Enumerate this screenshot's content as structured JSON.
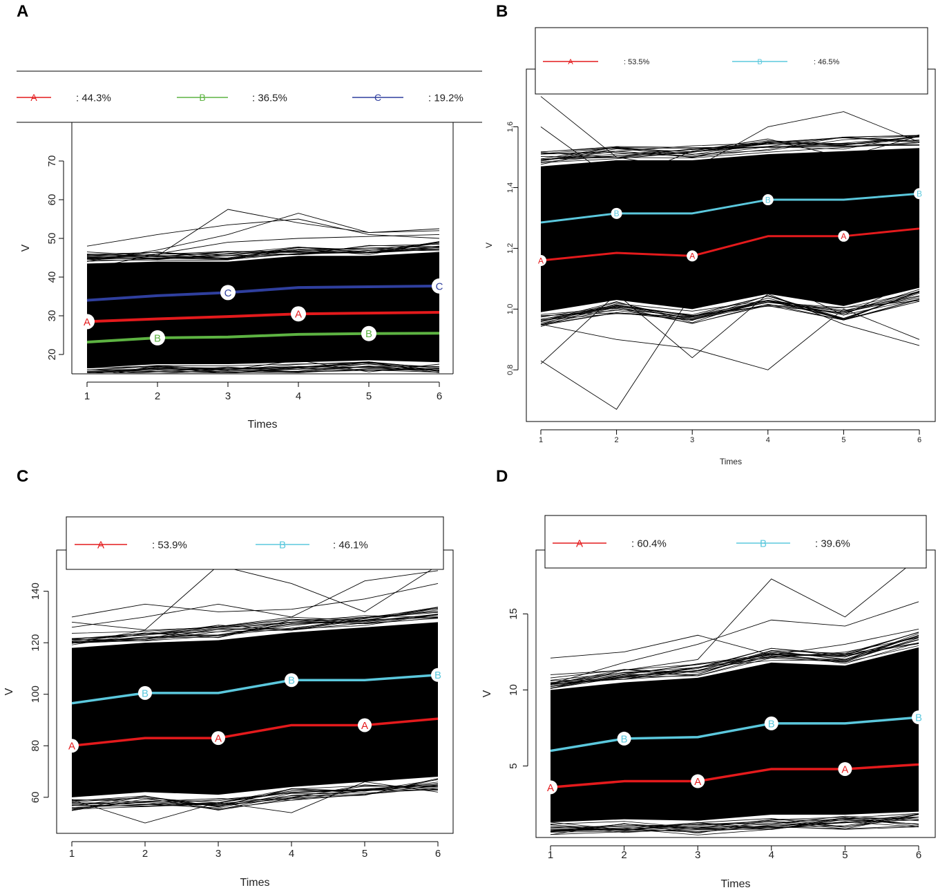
{
  "figure": {
    "panels": [
      "A",
      "B",
      "C",
      "D"
    ]
  },
  "chart_data": [
    {
      "panel": "A",
      "type": "line",
      "xlabel": "Times",
      "ylabel": "V",
      "x": [
        1,
        2,
        3,
        4,
        5,
        6
      ],
      "xticks": [
        1,
        2,
        3,
        4,
        5,
        6
      ],
      "yticks": [
        20,
        30,
        40,
        50,
        60,
        70
      ],
      "ylim": [
        15,
        80
      ],
      "band": {
        "lower": [
          16.5,
          17.5,
          17.5,
          18.0,
          18.5,
          18.0
        ],
        "upper": [
          43.5,
          44.0,
          44.0,
          45.5,
          45.5,
          46.5
        ]
      },
      "outliers": [
        [
          48.0,
          51.0,
          53.5,
          55.0,
          51.0,
          50.0
        ],
        [
          46.5,
          45.5,
          57.5,
          54.0,
          51.5,
          52.0
        ],
        [
          44.0,
          47.0,
          51.0,
          56.5,
          51.5,
          52.5
        ],
        [
          42.0,
          46.0,
          49.0,
          50.0,
          50.5,
          51.0
        ],
        [
          16.5,
          17.0,
          16.0,
          18.5,
          15.5,
          17.5
        ]
      ],
      "series": [
        {
          "name": "A",
          "share": ": 44.3%",
          "color": "#e41a1c",
          "values": [
            28.5,
            29.2,
            29.8,
            30.5,
            30.7,
            30.9
          ],
          "markers": [
            1,
            4
          ]
        },
        {
          "name": "B",
          "share": ": 36.5%",
          "color": "#5db342",
          "values": [
            23.2,
            24.3,
            24.5,
            25.2,
            25.4,
            25.5
          ],
          "markers": [
            2,
            5
          ]
        },
        {
          "name": "C",
          "share": ": 19.2%",
          "color": "#2f3f9e",
          "values": [
            34.0,
            35.2,
            36.0,
            37.3,
            37.5,
            37.7
          ],
          "markers": [
            3,
            6
          ]
        }
      ]
    },
    {
      "panel": "B",
      "type": "line",
      "xlabel": "Times",
      "ylabel": "V",
      "x": [
        1,
        2,
        3,
        4,
        5,
        6
      ],
      "xticks": [
        1,
        2,
        3,
        4,
        5,
        6
      ],
      "yticks": [
        "0.8",
        "1.0",
        "1.2",
        "1.4",
        "1.6"
      ],
      "ylim": [
        0.63,
        1.79
      ],
      "band": {
        "lower": [
          0.99,
          1.03,
          1.0,
          1.05,
          1.01,
          1.07
        ],
        "upper": [
          1.47,
          1.49,
          1.49,
          1.51,
          1.52,
          1.53
        ]
      },
      "outliers": [
        [
          1.7,
          1.5,
          1.46,
          1.6,
          1.65,
          1.55
        ],
        [
          0.83,
          0.67,
          1.05,
          1.1,
          0.98,
          1.1
        ],
        [
          0.82,
          1.05,
          0.84,
          1.05,
          0.95,
          0.88
        ],
        [
          1.6,
          1.42,
          1.52,
          1.56,
          1.5,
          1.57
        ],
        [
          0.95,
          0.9,
          0.87,
          0.8,
          1.0,
          0.9
        ]
      ],
      "series": [
        {
          "name": "A",
          "share": ": 53.5%",
          "color": "#e41a1c",
          "values": [
            1.16,
            1.185,
            1.175,
            1.24,
            1.24,
            1.265
          ],
          "markers": [
            1,
            3,
            5
          ]
        },
        {
          "name": "B",
          "share": ": 46.5%",
          "color": "#5bc8dd",
          "values": [
            1.285,
            1.315,
            1.315,
            1.36,
            1.36,
            1.38
          ],
          "markers": [
            2,
            4,
            6
          ]
        }
      ]
    },
    {
      "panel": "C",
      "type": "line",
      "xlabel": "Times",
      "ylabel": "V",
      "x": [
        1,
        2,
        3,
        4,
        5,
        6
      ],
      "xticks": [
        1,
        2,
        3,
        4,
        5,
        6
      ],
      "yticks": [
        60,
        80,
        100,
        120,
        140
      ],
      "ylim": [
        46,
        156
      ],
      "band": {
        "lower": [
          60,
          62,
          61,
          64,
          66,
          68
        ],
        "upper": [
          118,
          120,
          121,
          124,
          126,
          128
        ]
      },
      "outliers": [
        [
          130,
          135,
          132,
          133,
          137,
          143
        ],
        [
          128,
          125,
          150,
          143,
          132,
          150
        ],
        [
          59,
          50,
          58,
          54,
          66,
          62
        ],
        [
          126,
          130,
          135,
          130,
          144,
          148
        ]
      ],
      "series": [
        {
          "name": "A",
          "share": ": 53.9%",
          "color": "#e41a1c",
          "values": [
            80,
            83,
            83,
            88,
            88,
            90.5
          ],
          "markers": [
            1,
            3,
            5
          ]
        },
        {
          "name": "B",
          "share": ": 46.1%",
          "color": "#5bc8dd",
          "values": [
            96.5,
            100.5,
            100.5,
            105.5,
            105.5,
            107.5
          ],
          "markers": [
            2,
            4,
            6
          ]
        }
      ]
    },
    {
      "panel": "D",
      "type": "line",
      "xlabel": "Times",
      "ylabel": "V",
      "x": [
        1,
        2,
        3,
        4,
        5,
        6
      ],
      "xticks": [
        1,
        2,
        3,
        4,
        5,
        6
      ],
      "yticks": [
        5,
        10,
        15
      ],
      "ylim": [
        0.3,
        19.2
      ],
      "band": {
        "lower": [
          1.3,
          1.5,
          1.4,
          1.8,
          1.8,
          2.0
        ],
        "upper": [
          10.0,
          10.5,
          10.8,
          11.8,
          11.6,
          12.8
        ]
      },
      "outliers": [
        [
          12.1,
          12.5,
          13.6,
          12.3,
          13.0,
          14.0
        ],
        [
          11.0,
          11.3,
          12.0,
          17.3,
          14.8,
          18.7
        ],
        [
          10.4,
          11.8,
          13.0,
          14.6,
          14.2,
          15.8
        ],
        [
          1.3,
          0.8,
          1.2,
          1.2,
          1.7,
          1.4
        ]
      ],
      "series": [
        {
          "name": "A",
          "share": ": 60.4%",
          "color": "#e41a1c",
          "values": [
            3.6,
            4.0,
            4.0,
            4.8,
            4.8,
            5.1
          ],
          "markers": [
            1,
            3,
            5
          ]
        },
        {
          "name": "B",
          "share": ": 39.6%",
          "color": "#5bc8dd",
          "values": [
            6.0,
            6.8,
            6.9,
            7.8,
            7.8,
            8.2
          ],
          "markers": [
            2,
            4,
            6
          ]
        }
      ]
    }
  ]
}
